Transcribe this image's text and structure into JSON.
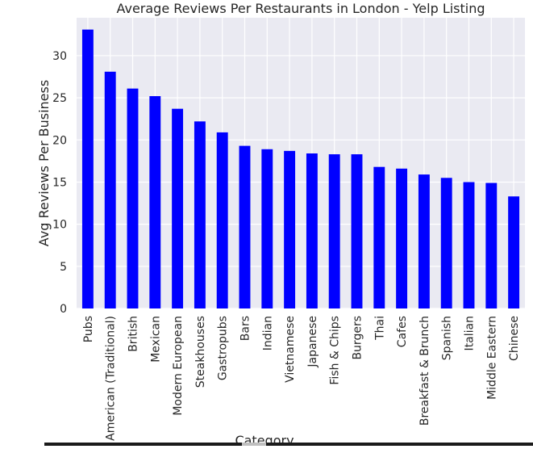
{
  "chart_data": {
    "type": "bar",
    "title": "Average Reviews Per Restaurants in London - Yelp Listing",
    "xlabel": "Category",
    "ylabel": "Avg Reviews Per Business",
    "categories": [
      "Pubs",
      "American (Traditional)",
      "British",
      "Mexican",
      "Modern European",
      "Steakhouses",
      "Gastropubs",
      "Bars",
      "Indian",
      "Vietnamese",
      "Japanese",
      "Fish & Chips",
      "Burgers",
      "Thai",
      "Cafes",
      "Breakfast & Brunch",
      "Spanish",
      "Italian",
      "Middle Eastern",
      "Chinese"
    ],
    "values": [
      33.1,
      28.1,
      26.1,
      25.2,
      23.7,
      22.2,
      20.9,
      19.3,
      18.9,
      18.7,
      18.4,
      18.3,
      18.3,
      16.8,
      16.6,
      15.9,
      15.5,
      15.0,
      14.9,
      13.3
    ],
    "yticks": [
      0,
      5,
      10,
      15,
      20,
      25,
      30
    ],
    "ylim": [
      0,
      34.5
    ],
    "grid": true,
    "legend": "none",
    "colors": {
      "bar": "#0000ff",
      "plot_background": "#eaeaf2",
      "grid": "#ffffff",
      "text": "#262626"
    }
  }
}
